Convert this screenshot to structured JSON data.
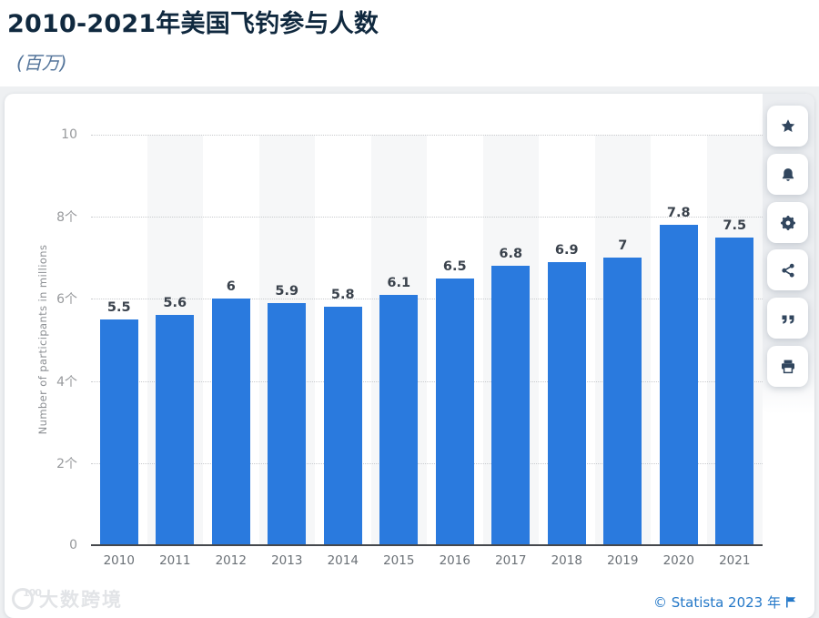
{
  "header": {
    "title": "2010-2021年美国飞钓参与人数",
    "subtitle": "(百万)"
  },
  "chart_data": {
    "type": "bar",
    "title": "2010-2021年美国飞钓参与人数",
    "subtitle_unit": "(百万)",
    "categories": [
      "2010",
      "2011",
      "2012",
      "2013",
      "2014",
      "2015",
      "2016",
      "2017",
      "2018",
      "2019",
      "2020",
      "2021"
    ],
    "values": [
      5.5,
      5.6,
      6,
      5.9,
      5.8,
      6.1,
      6.5,
      6.8,
      6.9,
      7,
      7.8,
      7.5
    ],
    "value_labels": [
      "5.5",
      "5.6",
      "6",
      "5.9",
      "5.8",
      "6.1",
      "6.5",
      "6.8",
      "6.9",
      "7",
      "7.8",
      "7.5"
    ],
    "xlabel": "",
    "ylabel": "Number of participants in millions",
    "ylim": [
      0,
      10
    ],
    "yticks": [
      {
        "value": 10,
        "label": "10"
      },
      {
        "value": 8,
        "label": "8个"
      },
      {
        "value": 6,
        "label": "6个"
      },
      {
        "value": 4,
        "label": "4个"
      },
      {
        "value": 2,
        "label": "2个"
      },
      {
        "value": 0,
        "label": "0"
      }
    ],
    "grid": "horizontal-dotted",
    "legend": "none",
    "bar_color": "#2a7ade",
    "band_color": "#f6f7f8",
    "banded_columns": "alternate-odd"
  },
  "toolbar": {
    "buttons": [
      {
        "name": "favorite",
        "icon": "star-icon"
      },
      {
        "name": "alerts",
        "icon": "bell-icon"
      },
      {
        "name": "settings",
        "icon": "gear-icon"
      },
      {
        "name": "share",
        "icon": "share-icon"
      },
      {
        "name": "cite",
        "icon": "quote-icon"
      },
      {
        "name": "print",
        "icon": "printer-icon"
      }
    ]
  },
  "footer": {
    "watermark_badge": "100",
    "watermark": "大数跨境",
    "copyright": "© Statista 2023 年"
  }
}
